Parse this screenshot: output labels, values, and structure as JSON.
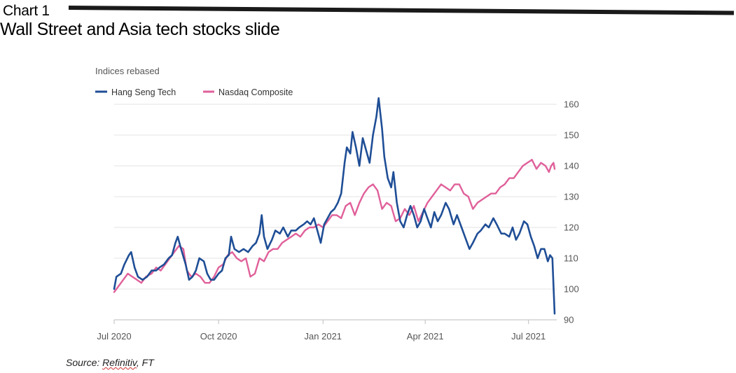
{
  "header": {
    "chart_label": "Chart 1",
    "headline": "Wall Street and Asia tech stocks slide"
  },
  "source": {
    "prefix": "Source: ",
    "name": "Refinitiv",
    "suffix": ", FT"
  },
  "colors": {
    "hang_seng": "#1f4e96",
    "nasdaq": "#e0609a",
    "grid": "#e3e3e3",
    "axis_text": "#555555"
  },
  "chart_data": {
    "type": "line",
    "subtitle": "Indices rebased",
    "ylim": [
      90,
      160
    ],
    "yticks": [
      90,
      100,
      110,
      120,
      130,
      140,
      150,
      160
    ],
    "y_axis_position": "right",
    "grid": true,
    "legend_position": "top-left",
    "x_range": [
      "2020-07-01",
      "2021-07-24"
    ],
    "xticks": [
      {
        "date": "2020-07-01",
        "label": "Jul 2020"
      },
      {
        "date": "2020-10-01",
        "label": "Oct 2020"
      },
      {
        "date": "2021-01-01",
        "label": "Jan 2021"
      },
      {
        "date": "2021-04-01",
        "label": "Apr 2021"
      },
      {
        "date": "2021-07-01",
        "label": "Jul 2021"
      }
    ],
    "series": [
      {
        "name": "Hang Seng Tech",
        "color": "#1f4e96",
        "points": [
          [
            "2020-07-01",
            100
          ],
          [
            "2020-07-03",
            104
          ],
          [
            "2020-07-07",
            105
          ],
          [
            "2020-07-10",
            108
          ],
          [
            "2020-07-14",
            111
          ],
          [
            "2020-07-16",
            112
          ],
          [
            "2020-07-19",
            107
          ],
          [
            "2020-07-22",
            104
          ],
          [
            "2020-07-26",
            103
          ],
          [
            "2020-07-30",
            104
          ],
          [
            "2020-08-03",
            106
          ],
          [
            "2020-08-07",
            106
          ],
          [
            "2020-08-10",
            107
          ],
          [
            "2020-08-14",
            108
          ],
          [
            "2020-08-18",
            110
          ],
          [
            "2020-08-21",
            111
          ],
          [
            "2020-08-24",
            115
          ],
          [
            "2020-08-26",
            117
          ],
          [
            "2020-08-29",
            113
          ],
          [
            "2020-09-02",
            108
          ],
          [
            "2020-09-05",
            103
          ],
          [
            "2020-09-08",
            104
          ],
          [
            "2020-09-11",
            106
          ],
          [
            "2020-09-14",
            110
          ],
          [
            "2020-09-18",
            109
          ],
          [
            "2020-09-21",
            105
          ],
          [
            "2020-09-24",
            103
          ],
          [
            "2020-09-27",
            103
          ],
          [
            "2020-10-01",
            105
          ],
          [
            "2020-10-04",
            106
          ],
          [
            "2020-10-07",
            110
          ],
          [
            "2020-10-10",
            111
          ],
          [
            "2020-10-12",
            117
          ],
          [
            "2020-10-15",
            113
          ],
          [
            "2020-10-19",
            112
          ],
          [
            "2020-10-23",
            113
          ],
          [
            "2020-10-27",
            112
          ],
          [
            "2020-10-31",
            114
          ],
          [
            "2020-11-03",
            115
          ],
          [
            "2020-11-06",
            118
          ],
          [
            "2020-11-08",
            124
          ],
          [
            "2020-11-10",
            117
          ],
          [
            "2020-11-13",
            113
          ],
          [
            "2020-11-17",
            116
          ],
          [
            "2020-11-20",
            119
          ],
          [
            "2020-11-24",
            118
          ],
          [
            "2020-11-27",
            120
          ],
          [
            "2020-12-01",
            117
          ],
          [
            "2020-12-04",
            119
          ],
          [
            "2020-12-08",
            119
          ],
          [
            "2020-12-11",
            120
          ],
          [
            "2020-12-15",
            121
          ],
          [
            "2020-12-18",
            122
          ],
          [
            "2020-12-21",
            121
          ],
          [
            "2020-12-24",
            123
          ],
          [
            "2020-12-27",
            119
          ],
          [
            "2020-12-30",
            115
          ],
          [
            "2021-01-02",
            121
          ],
          [
            "2021-01-05",
            123
          ],
          [
            "2021-01-08",
            125
          ],
          [
            "2021-01-11",
            126
          ],
          [
            "2021-01-14",
            128
          ],
          [
            "2021-01-17",
            131
          ],
          [
            "2021-01-20",
            141
          ],
          [
            "2021-01-22",
            146
          ],
          [
            "2021-01-25",
            144
          ],
          [
            "2021-01-27",
            151
          ],
          [
            "2021-01-30",
            146
          ],
          [
            "2021-02-02",
            140
          ],
          [
            "2021-02-05",
            149
          ],
          [
            "2021-02-08",
            145
          ],
          [
            "2021-02-11",
            141
          ],
          [
            "2021-02-14",
            150
          ],
          [
            "2021-02-17",
            156
          ],
          [
            "2021-02-19",
            162
          ],
          [
            "2021-02-22",
            152
          ],
          [
            "2021-02-24",
            143
          ],
          [
            "2021-02-27",
            136
          ],
          [
            "2021-03-02",
            133
          ],
          [
            "2021-03-04",
            138
          ],
          [
            "2021-03-07",
            128
          ],
          [
            "2021-03-10",
            122
          ],
          [
            "2021-03-13",
            120
          ],
          [
            "2021-03-16",
            124
          ],
          [
            "2021-03-19",
            127
          ],
          [
            "2021-03-22",
            124
          ],
          [
            "2021-03-25",
            120
          ],
          [
            "2021-03-28",
            122
          ],
          [
            "2021-03-31",
            126
          ],
          [
            "2021-04-03",
            123
          ],
          [
            "2021-04-06",
            120
          ],
          [
            "2021-04-09",
            125
          ],
          [
            "2021-04-12",
            122
          ],
          [
            "2021-04-15",
            124
          ],
          [
            "2021-04-19",
            128
          ],
          [
            "2021-04-22",
            126
          ],
          [
            "2021-04-26",
            121
          ],
          [
            "2021-04-29",
            124
          ],
          [
            "2021-05-03",
            120
          ],
          [
            "2021-05-06",
            117
          ],
          [
            "2021-05-10",
            113
          ],
          [
            "2021-05-13",
            115
          ],
          [
            "2021-05-17",
            118
          ],
          [
            "2021-05-20",
            119
          ],
          [
            "2021-05-24",
            121
          ],
          [
            "2021-05-27",
            120
          ],
          [
            "2021-05-31",
            123
          ],
          [
            "2021-06-03",
            121
          ],
          [
            "2021-06-07",
            118
          ],
          [
            "2021-06-10",
            118
          ],
          [
            "2021-06-14",
            117
          ],
          [
            "2021-06-17",
            120
          ],
          [
            "2021-06-20",
            116
          ],
          [
            "2021-06-23",
            118
          ],
          [
            "2021-06-27",
            122
          ],
          [
            "2021-06-30",
            121
          ],
          [
            "2021-07-03",
            117
          ],
          [
            "2021-07-06",
            114
          ],
          [
            "2021-07-09",
            110
          ],
          [
            "2021-07-12",
            113
          ],
          [
            "2021-07-15",
            113
          ],
          [
            "2021-07-18",
            109
          ],
          [
            "2021-07-20",
            111
          ],
          [
            "2021-07-22",
            110
          ],
          [
            "2021-07-23",
            101
          ],
          [
            "2021-07-24",
            92
          ]
        ]
      },
      {
        "name": "Nasdaq Composite",
        "color": "#e0609a",
        "points": [
          [
            "2020-07-01",
            99
          ],
          [
            "2020-07-05",
            101
          ],
          [
            "2020-07-09",
            103
          ],
          [
            "2020-07-13",
            105
          ],
          [
            "2020-07-17",
            104
          ],
          [
            "2020-07-21",
            103
          ],
          [
            "2020-07-25",
            102
          ],
          [
            "2020-07-29",
            104
          ],
          [
            "2020-08-03",
            105
          ],
          [
            "2020-08-07",
            107
          ],
          [
            "2020-08-11",
            106
          ],
          [
            "2020-08-15",
            108
          ],
          [
            "2020-08-19",
            110
          ],
          [
            "2020-08-23",
            112
          ],
          [
            "2020-08-27",
            114
          ],
          [
            "2020-08-31",
            113
          ],
          [
            "2020-09-03",
            106
          ],
          [
            "2020-09-07",
            104
          ],
          [
            "2020-09-11",
            105
          ],
          [
            "2020-09-15",
            104
          ],
          [
            "2020-09-19",
            102
          ],
          [
            "2020-09-23",
            102
          ],
          [
            "2020-09-27",
            104
          ],
          [
            "2020-10-01",
            107
          ],
          [
            "2020-10-05",
            108
          ],
          [
            "2020-10-09",
            111
          ],
          [
            "2020-10-13",
            112
          ],
          [
            "2020-10-17",
            110
          ],
          [
            "2020-10-21",
            109
          ],
          [
            "2020-10-25",
            110
          ],
          [
            "2020-10-29",
            104
          ],
          [
            "2020-11-02",
            105
          ],
          [
            "2020-11-06",
            110
          ],
          [
            "2020-11-10",
            109
          ],
          [
            "2020-11-14",
            112
          ],
          [
            "2020-11-18",
            113
          ],
          [
            "2020-11-22",
            113
          ],
          [
            "2020-11-26",
            115
          ],
          [
            "2020-11-30",
            116
          ],
          [
            "2020-12-04",
            117
          ],
          [
            "2020-12-08",
            118
          ],
          [
            "2020-12-12",
            117
          ],
          [
            "2020-12-16",
            119
          ],
          [
            "2020-12-20",
            120
          ],
          [
            "2020-12-24",
            120
          ],
          [
            "2020-12-28",
            121
          ],
          [
            "2021-01-01",
            120
          ],
          [
            "2021-01-05",
            122
          ],
          [
            "2021-01-09",
            124
          ],
          [
            "2021-01-13",
            124
          ],
          [
            "2021-01-17",
            123
          ],
          [
            "2021-01-21",
            127
          ],
          [
            "2021-01-25",
            128
          ],
          [
            "2021-01-29",
            124
          ],
          [
            "2021-02-02",
            128
          ],
          [
            "2021-02-06",
            131
          ],
          [
            "2021-02-10",
            133
          ],
          [
            "2021-02-14",
            134
          ],
          [
            "2021-02-18",
            132
          ],
          [
            "2021-02-22",
            126
          ],
          [
            "2021-02-26",
            128
          ],
          [
            "2021-03-02",
            127
          ],
          [
            "2021-03-06",
            122
          ],
          [
            "2021-03-10",
            123
          ],
          [
            "2021-03-14",
            126
          ],
          [
            "2021-03-18",
            124
          ],
          [
            "2021-03-22",
            127
          ],
          [
            "2021-03-26",
            122
          ],
          [
            "2021-03-30",
            125
          ],
          [
            "2021-04-03",
            128
          ],
          [
            "2021-04-07",
            130
          ],
          [
            "2021-04-11",
            132
          ],
          [
            "2021-04-15",
            134
          ],
          [
            "2021-04-19",
            133
          ],
          [
            "2021-04-23",
            132
          ],
          [
            "2021-04-27",
            134
          ],
          [
            "2021-05-01",
            134
          ],
          [
            "2021-05-05",
            131
          ],
          [
            "2021-05-09",
            130
          ],
          [
            "2021-05-13",
            126
          ],
          [
            "2021-05-17",
            128
          ],
          [
            "2021-05-21",
            129
          ],
          [
            "2021-05-25",
            130
          ],
          [
            "2021-05-29",
            131
          ],
          [
            "2021-06-02",
            131
          ],
          [
            "2021-06-06",
            133
          ],
          [
            "2021-06-10",
            134
          ],
          [
            "2021-06-14",
            136
          ],
          [
            "2021-06-18",
            136
          ],
          [
            "2021-06-22",
            138
          ],
          [
            "2021-06-26",
            140
          ],
          [
            "2021-06-30",
            141
          ],
          [
            "2021-07-04",
            142
          ],
          [
            "2021-07-08",
            139
          ],
          [
            "2021-07-12",
            141
          ],
          [
            "2021-07-16",
            140
          ],
          [
            "2021-07-19",
            138
          ],
          [
            "2021-07-21",
            140
          ],
          [
            "2021-07-23",
            141
          ],
          [
            "2021-07-24",
            139
          ]
        ]
      }
    ]
  }
}
